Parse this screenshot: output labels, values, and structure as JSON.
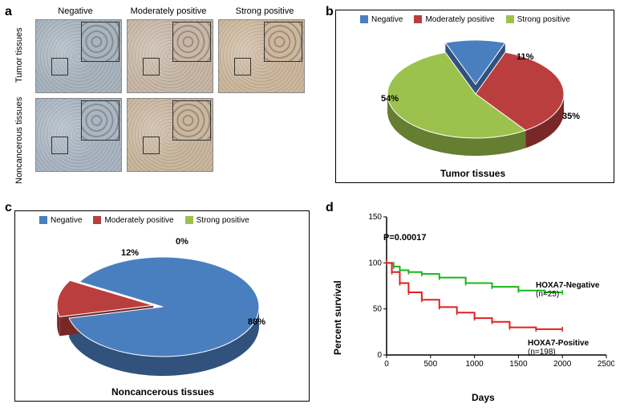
{
  "panel_a": {
    "label": "a",
    "row_labels": [
      "Tumor tissues",
      "Noncancerous tissues"
    ],
    "col_labels": [
      "Negative",
      "Moderately positive",
      "Strong positive"
    ],
    "image_tints": {
      "tumor": [
        "#a7b5c0",
        "#c8b8a8",
        "#cdb89e"
      ],
      "noncancer": [
        "#a9b7c4",
        "#c9b79f",
        null
      ]
    }
  },
  "panel_b": {
    "label": "b",
    "legend": [
      {
        "name": "Negative",
        "color": "#4a7fbf"
      },
      {
        "name": "Moderately positive",
        "color": "#bb3e3e"
      },
      {
        "name": "Strong positive",
        "color": "#9cc24d"
      }
    ],
    "slices": [
      {
        "pct": 11,
        "label": "11%",
        "color": "#4a7fbf"
      },
      {
        "pct": 35,
        "label": "35%",
        "color": "#bb3e3e"
      },
      {
        "pct": 54,
        "label": "54%",
        "color": "#9cc24d"
      }
    ],
    "title": "Tumor tissues"
  },
  "panel_c": {
    "label": "c",
    "legend": [
      {
        "name": "Negative",
        "color": "#4a7fbf"
      },
      {
        "name": "Moderately positive",
        "color": "#bb3e3e"
      },
      {
        "name": "Strong positive",
        "color": "#9cc24d"
      }
    ],
    "slices": [
      {
        "pct": 88,
        "label": "88%",
        "color": "#4a7fbf"
      },
      {
        "pct": 12,
        "label": "12%",
        "color": "#bb3e3e"
      },
      {
        "pct": 0,
        "label": "0%",
        "color": "#9cc24d"
      }
    ],
    "title": "Noncancerous tissues"
  },
  "panel_d": {
    "label": "d",
    "yaxis": {
      "title": "Percent survival",
      "min": 0,
      "max": 150,
      "ticks": [
        0,
        50,
        100,
        150
      ]
    },
    "xaxis": {
      "title": "Days",
      "min": 0,
      "max": 2500,
      "ticks": [
        0,
        500,
        1000,
        1500,
        2000,
        2500
      ]
    },
    "pvalue": "P=0.00017",
    "curves": [
      {
        "name": "HOXA7-Negative",
        "n": "(n=25)",
        "color": "#1bb51b",
        "points": [
          [
            0,
            100
          ],
          [
            80,
            96
          ],
          [
            150,
            92
          ],
          [
            250,
            90
          ],
          [
            400,
            88
          ],
          [
            600,
            84
          ],
          [
            900,
            78
          ],
          [
            1200,
            74
          ],
          [
            1500,
            70
          ],
          [
            1800,
            68
          ],
          [
            2000,
            68
          ]
        ]
      },
      {
        "name": "HOXA7-Positive",
        "n": "(n=198)",
        "color": "#e21f1f",
        "points": [
          [
            0,
            100
          ],
          [
            60,
            90
          ],
          [
            150,
            78
          ],
          [
            250,
            68
          ],
          [
            400,
            60
          ],
          [
            600,
            52
          ],
          [
            800,
            46
          ],
          [
            1000,
            40
          ],
          [
            1200,
            36
          ],
          [
            1400,
            30
          ],
          [
            1700,
            28
          ],
          [
            2000,
            28
          ]
        ]
      }
    ]
  }
}
